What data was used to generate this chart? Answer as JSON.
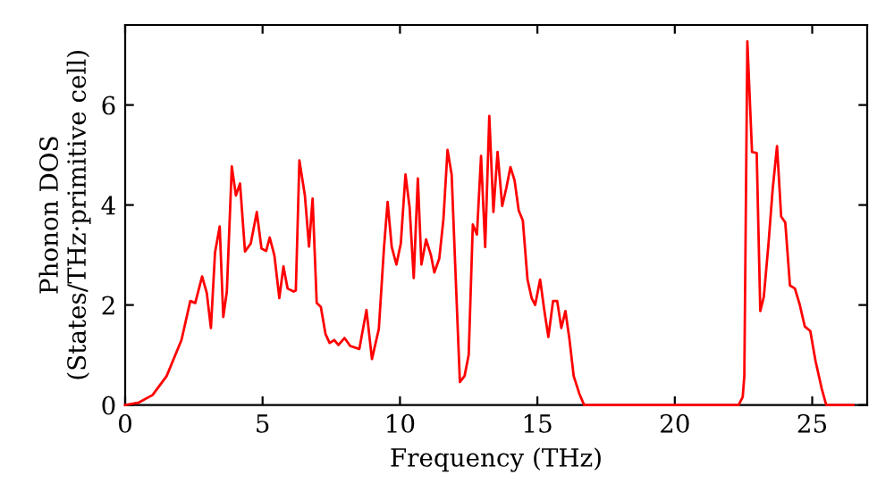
{
  "chart_data": {
    "type": "line",
    "xlabel": "Frequency (THz)",
    "ylabel": "Phonon DOS\n(States/THz·primitive cell)",
    "xlim": [
      0,
      27
    ],
    "ylim": [
      0,
      7.6
    ],
    "xticks": [
      0,
      5,
      10,
      15,
      20,
      25
    ],
    "yticks": [
      0,
      2,
      4,
      6
    ],
    "grid": false,
    "series": [
      {
        "color": "#ff0000",
        "x": [
          0,
          0.5,
          1.0,
          1.51,
          2.05,
          2.37,
          2.55,
          2.8,
          2.97,
          3.12,
          3.27,
          3.44,
          3.57,
          3.7,
          3.88,
          4.03,
          4.18,
          4.36,
          4.57,
          4.79,
          4.96,
          5.13,
          5.26,
          5.43,
          5.61,
          5.76,
          5.91,
          6.13,
          6.21,
          6.34,
          6.54,
          6.69,
          6.82,
          6.97,
          7.12,
          7.29,
          7.44,
          7.61,
          7.76,
          7.98,
          8.19,
          8.52,
          8.78,
          8.98,
          9.23,
          9.42,
          9.55,
          9.7,
          9.87,
          10.03,
          10.2,
          10.35,
          10.5,
          10.65,
          10.78,
          10.95,
          11.13,
          11.25,
          11.43,
          11.58,
          11.73,
          11.88,
          12.03,
          12.18,
          12.35,
          12.5,
          12.65,
          12.8,
          12.95,
          13.1,
          13.25,
          13.4,
          13.55,
          13.72,
          13.87,
          14.02,
          14.17,
          14.32,
          14.47,
          14.64,
          14.79,
          14.92,
          15.1,
          15.25,
          15.4,
          15.57,
          15.72,
          15.87,
          16.02,
          16.17,
          16.32,
          16.53,
          16.7,
          22.32,
          22.47,
          22.53,
          22.64,
          22.81,
          22.98,
          23.11,
          23.24,
          23.41,
          23.56,
          23.72,
          23.87,
          24.02,
          24.19,
          24.37,
          24.54,
          24.73,
          24.93,
          25.12,
          25.34,
          25.51,
          26.5
        ],
        "values": [
          0,
          0.05,
          0.2,
          0.58,
          1.3,
          2.08,
          2.04,
          2.57,
          2.24,
          1.54,
          3.05,
          3.57,
          1.76,
          2.27,
          4.77,
          4.19,
          4.43,
          3.07,
          3.23,
          3.86,
          3.13,
          3.08,
          3.35,
          2.99,
          2.14,
          2.77,
          2.33,
          2.27,
          2.29,
          4.89,
          4.19,
          3.17,
          4.13,
          2.04,
          1.96,
          1.42,
          1.24,
          1.3,
          1.2,
          1.34,
          1.18,
          1.12,
          1.9,
          0.92,
          1.52,
          3.16,
          4.06,
          3.16,
          2.81,
          3.23,
          4.61,
          3.95,
          2.54,
          4.53,
          2.81,
          3.31,
          2.99,
          2.65,
          2.93,
          3.71,
          5.1,
          4.61,
          2.51,
          0.46,
          0.58,
          1.0,
          3.61,
          3.41,
          4.98,
          3.16,
          5.78,
          3.86,
          5.06,
          3.98,
          4.34,
          4.76,
          4.49,
          3.89,
          3.69,
          2.51,
          2.14,
          2.0,
          2.51,
          1.9,
          1.36,
          2.08,
          2.08,
          1.54,
          1.88,
          1.3,
          0.58,
          0.22,
          0,
          0,
          0.16,
          0.58,
          7.27,
          5.06,
          5.04,
          1.88,
          2.17,
          3.23,
          4.31,
          5.18,
          3.77,
          3.65,
          2.39,
          2.33,
          2.02,
          1.57,
          1.48,
          0.88,
          0.34,
          0,
          0
        ]
      }
    ]
  }
}
